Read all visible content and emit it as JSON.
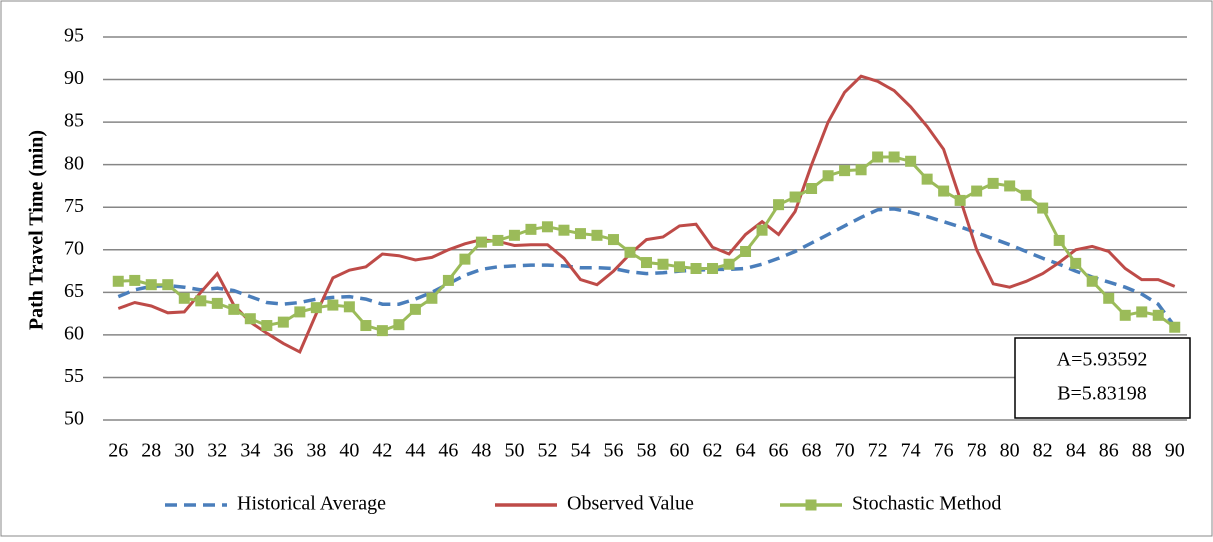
{
  "chart_data": {
    "type": "line",
    "y_label": "Path Travel Time (min)",
    "x": [
      26,
      27,
      28,
      29,
      30,
      31,
      32,
      33,
      34,
      35,
      36,
      37,
      38,
      39,
      40,
      41,
      42,
      43,
      44,
      45,
      46,
      47,
      48,
      49,
      50,
      51,
      52,
      53,
      54,
      55,
      56,
      57,
      58,
      59,
      60,
      61,
      62,
      63,
      64,
      65,
      66,
      67,
      68,
      69,
      70,
      71,
      72,
      73,
      74,
      75,
      76,
      77,
      78,
      79,
      80,
      81,
      82,
      83,
      84,
      85,
      86,
      87,
      88,
      89,
      90
    ],
    "xlim": [
      25.5,
      90.5
    ],
    "xticks": [
      26,
      28,
      30,
      32,
      34,
      36,
      38,
      40,
      42,
      44,
      46,
      48,
      50,
      52,
      54,
      56,
      58,
      60,
      62,
      64,
      66,
      68,
      70,
      72,
      74,
      76,
      78,
      80,
      82,
      84,
      86,
      88,
      90
    ],
    "ylim": [
      50,
      95
    ],
    "yticks": [
      50,
      55,
      60,
      65,
      70,
      75,
      80,
      85,
      90,
      95
    ],
    "grid": true,
    "legend": "bottom",
    "series": [
      {
        "name": "Historical Average",
        "color": "#4a7ebb",
        "style": "dashed",
        "values": [
          64.5,
          65.3,
          65.7,
          65.8,
          65.6,
          65.3,
          65.5,
          65.2,
          64.5,
          63.8,
          63.6,
          63.8,
          64.2,
          64.4,
          64.5,
          64.2,
          63.6,
          63.6,
          64.2,
          65.0,
          66.0,
          67.0,
          67.7,
          68.0,
          68.1,
          68.2,
          68.2,
          68.1,
          67.9,
          67.9,
          67.8,
          67.4,
          67.2,
          67.3,
          67.5,
          67.6,
          67.7,
          67.7,
          67.8,
          68.3,
          69.0,
          69.8,
          70.8,
          71.8,
          72.8,
          73.8,
          74.7,
          74.8,
          74.4,
          73.9,
          73.3,
          72.7,
          72.0,
          71.3,
          70.6,
          69.8,
          69.0,
          68.3,
          67.5,
          66.8,
          66.2,
          65.6,
          64.8,
          63.6,
          61.0
        ]
      },
      {
        "name": "Observed Value",
        "color": "#be4b48",
        "style": "solid",
        "values": [
          63.1,
          63.8,
          63.4,
          62.6,
          62.7,
          65.0,
          67.2,
          63.5,
          61.5,
          60.2,
          59.0,
          58.0,
          62.5,
          66.7,
          67.6,
          68.0,
          69.5,
          69.3,
          68.8,
          69.1,
          70.0,
          70.7,
          71.2,
          71.0,
          70.5,
          70.6,
          70.6,
          69.0,
          66.5,
          65.9,
          67.5,
          69.5,
          71.2,
          71.5,
          72.8,
          73.0,
          70.3,
          69.5,
          71.8,
          73.3,
          71.8,
          74.5,
          80.0,
          85.0,
          88.5,
          90.4,
          89.8,
          88.7,
          86.8,
          84.5,
          81.8,
          76.0,
          70.0,
          66.0,
          65.6,
          66.3,
          67.2,
          68.5,
          70.0,
          70.4,
          69.8,
          67.8,
          66.5,
          66.5,
          65.7
        ]
      },
      {
        "name": "Stochastic Method",
        "color": "#9bbb59",
        "style": "solid",
        "marker": "square",
        "values": [
          66.3,
          66.4,
          65.9,
          65.9,
          64.3,
          64.0,
          63.7,
          63.0,
          61.9,
          61.1,
          61.5,
          62.7,
          63.2,
          63.5,
          63.3,
          61.1,
          60.5,
          61.2,
          63.0,
          64.3,
          66.4,
          68.9,
          70.9,
          71.1,
          71.7,
          72.4,
          72.7,
          72.3,
          71.9,
          71.7,
          71.2,
          69.7,
          68.5,
          68.3,
          68.0,
          67.8,
          67.8,
          68.3,
          69.8,
          72.3,
          75.3,
          76.2,
          77.2,
          78.7,
          79.3,
          79.4,
          80.9,
          80.9,
          80.4,
          78.3,
          76.9,
          75.8,
          76.9,
          77.8,
          77.5,
          76.4,
          74.9,
          71.1,
          68.4,
          66.3,
          64.3,
          62.3,
          62.7,
          62.3,
          60.9
        ]
      }
    ],
    "annotations": [
      "A=5.93592",
      "B=5.83198"
    ]
  }
}
